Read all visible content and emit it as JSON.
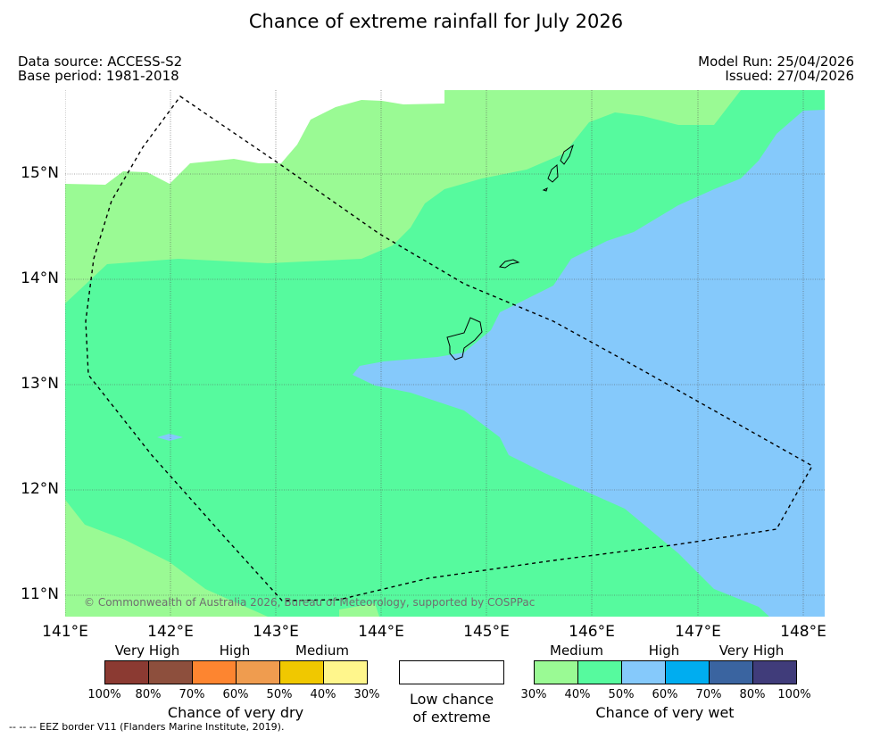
{
  "title": "Chance of extreme rainfall for July 2026",
  "meta": {
    "data_source": "Data source: ACCESS-S2",
    "base_period": "Base period: 1981-2018",
    "model_run": "Model Run: 25/04/2026",
    "issued": "Issued: 27/04/2026"
  },
  "map": {
    "lat_labels": [
      "15°N",
      "14°N",
      "13°N",
      "12°N",
      "11°N"
    ],
    "lon_labels": [
      "141°E",
      "142°E",
      "143°E",
      "144°E",
      "145°E",
      "146°E",
      "147°E",
      "148°E"
    ],
    "copyright": "© Commonwealth of Australia 2026, Bureau of Meteorology, supported by COSPPac"
  },
  "legend": {
    "dry": {
      "categories": [
        "Very High",
        "High",
        "Medium"
      ],
      "percents": [
        "100%",
        "80%",
        "70%",
        "60%",
        "50%",
        "40%",
        "30%"
      ],
      "colors": [
        "#8b3a32",
        "#8d4f3d",
        "#fd8530",
        "#ef9c4f",
        "#f0c800",
        "#fff68c"
      ],
      "title": "Chance of very dry"
    },
    "low": {
      "line1": "Low chance",
      "line2": "of extreme"
    },
    "wet": {
      "categories": [
        "Medium",
        "High",
        "Very High"
      ],
      "percents": [
        "30%",
        "40%",
        "50%",
        "60%",
        "70%",
        "80%",
        "100%"
      ],
      "colors": [
        "#9afa94",
        "#56fa9e",
        "#85c9fb",
        "#00adf0",
        "#3a64a0",
        "#403c7a"
      ],
      "title": "Chance of very wet"
    }
  },
  "footnote": "--  --  -- EEZ border V11 (Flanders Marine Institute, 2019)."
}
